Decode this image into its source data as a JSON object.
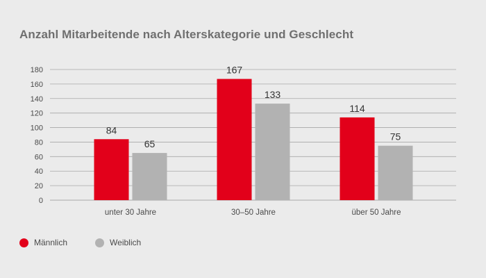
{
  "title": "Anzahl Mitarbeitende nach Alterskategorie und Geschlecht",
  "colors": {
    "maennlich": "#e2001a",
    "weiblich": "#b2b2b2",
    "grid": "#a8a8a8",
    "background": "#ebebeb"
  },
  "chart_data": {
    "type": "bar",
    "title": "Anzahl Mitarbeitende nach Alterskategorie und Geschlecht",
    "categories": [
      "unter 30 Jahre",
      "30–50 Jahre",
      "über 50 Jahre"
    ],
    "series": [
      {
        "name": "Männlich",
        "values": [
          84,
          167,
          114
        ]
      },
      {
        "name": "Weiblich",
        "values": [
          65,
          133,
          75
        ]
      }
    ],
    "yticks": [
      0,
      20,
      40,
      60,
      80,
      100,
      120,
      140,
      160,
      180
    ],
    "ylim": [
      0,
      180
    ],
    "grid": true,
    "legend": "bottom-left"
  },
  "legend": {
    "items": [
      {
        "label": "Männlich",
        "color": "#e2001a"
      },
      {
        "label": "Weiblich",
        "color": "#b2b2b2"
      }
    ]
  }
}
